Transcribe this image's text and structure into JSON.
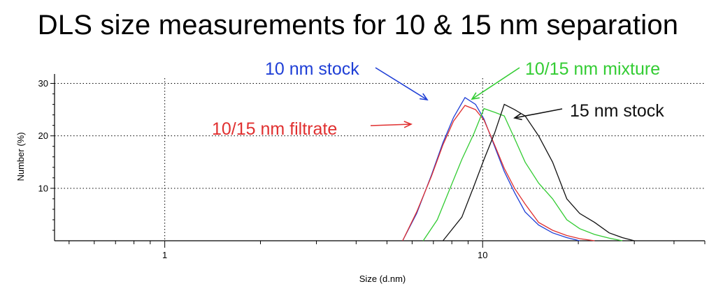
{
  "title": "DLS size measurements for 10 & 15 nm separation",
  "chart_data": {
    "type": "line",
    "xscale": "log",
    "xlabel": "Size (d.nm)",
    "ylabel": "Number (%)",
    "xlim": [
      0.45,
      50
    ],
    "ylim": [
      0,
      31
    ],
    "x_ticks": [
      1,
      10
    ],
    "y_ticks": [
      10,
      20,
      30
    ],
    "grid": true,
    "series": [
      {
        "name": "10 nm stock",
        "color": "#1f3fd6",
        "points": [
          [
            5.6,
            0
          ],
          [
            6.2,
            5.2
          ],
          [
            6.9,
            12.5
          ],
          [
            7.5,
            18.7
          ],
          [
            8.1,
            23.5
          ],
          [
            8.8,
            27.3
          ],
          [
            9.5,
            26.0
          ],
          [
            10.1,
            23.2
          ],
          [
            10.9,
            18.0
          ],
          [
            11.7,
            13.2
          ],
          [
            12.6,
            9.2
          ],
          [
            13.6,
            5.5
          ],
          [
            15.0,
            3.0
          ],
          [
            16.6,
            1.5
          ],
          [
            18.4,
            0.6
          ],
          [
            20.2,
            0
          ]
        ]
      },
      {
        "name": "10/15 nm filtrate",
        "color": "#e03030",
        "points": [
          [
            5.6,
            0
          ],
          [
            6.2,
            5.5
          ],
          [
            6.9,
            12.3
          ],
          [
            7.5,
            18.3
          ],
          [
            8.1,
            22.8
          ],
          [
            8.8,
            25.8
          ],
          [
            9.5,
            25.0
          ],
          [
            10.1,
            23.0
          ],
          [
            10.9,
            18.3
          ],
          [
            11.7,
            13.8
          ],
          [
            12.6,
            10.0
          ],
          [
            13.6,
            7.0
          ],
          [
            15.0,
            3.5
          ],
          [
            16.6,
            2.0
          ],
          [
            18.4,
            1.0
          ],
          [
            20.2,
            0.4
          ],
          [
            22.5,
            0
          ]
        ]
      },
      {
        "name": "10/15 nm mixture",
        "color": "#33cc33",
        "points": [
          [
            6.5,
            0
          ],
          [
            7.2,
            4.0
          ],
          [
            7.9,
            10.0
          ],
          [
            8.6,
            15.5
          ],
          [
            9.4,
            20.5
          ],
          [
            10.1,
            25.2
          ],
          [
            10.9,
            24.5
          ],
          [
            11.7,
            23.8
          ],
          [
            12.6,
            19.5
          ],
          [
            13.6,
            15.0
          ],
          [
            15.0,
            11.0
          ],
          [
            16.6,
            8.0
          ],
          [
            18.4,
            4.0
          ],
          [
            20.2,
            2.3
          ],
          [
            22.5,
            1.2
          ],
          [
            25.0,
            0.5
          ],
          [
            27.5,
            0
          ]
        ]
      },
      {
        "name": "15 nm stock",
        "color": "#111111",
        "points": [
          [
            7.5,
            0
          ],
          [
            8.6,
            4.5
          ],
          [
            9.4,
            10.5
          ],
          [
            10.1,
            15.5
          ],
          [
            10.9,
            20.5
          ],
          [
            11.7,
            26.0
          ],
          [
            12.6,
            25.0
          ],
          [
            13.6,
            23.8
          ],
          [
            15.0,
            20.0
          ],
          [
            16.6,
            15.0
          ],
          [
            18.4,
            8.0
          ],
          [
            20.2,
            5.2
          ],
          [
            22.5,
            3.5
          ],
          [
            25.0,
            1.5
          ],
          [
            27.5,
            0.6
          ],
          [
            30.0,
            0
          ]
        ]
      }
    ]
  }
}
